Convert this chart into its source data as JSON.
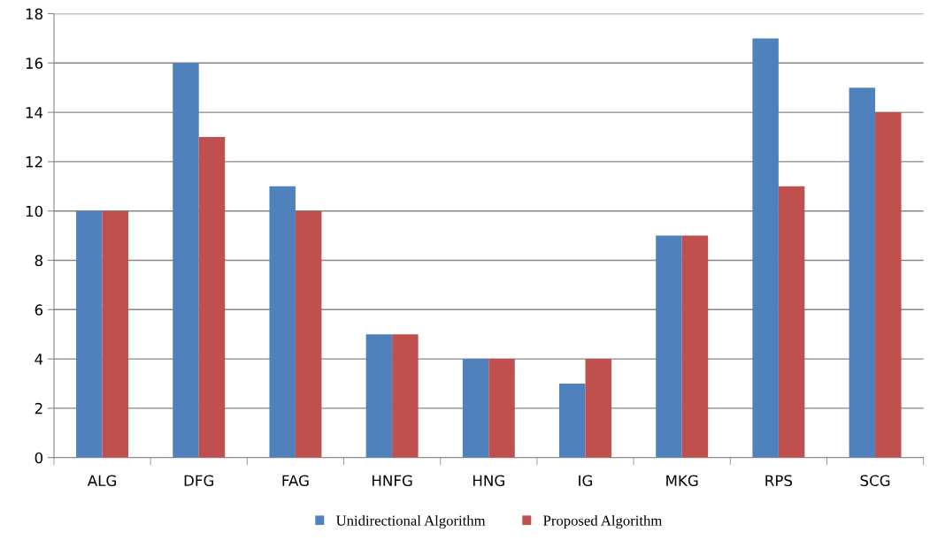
{
  "chart_data": {
    "type": "bar",
    "categories": [
      "ALG",
      "DFG",
      "FAG",
      "HNFG",
      "HNG",
      "IG",
      "MKG",
      "RPS",
      "SCG"
    ],
    "series": [
      {
        "name": "Unidirectional Algorithm",
        "color": "#4f81bd",
        "values": [
          10,
          16,
          11,
          5,
          4,
          3,
          9,
          17,
          15
        ]
      },
      {
        "name": "Proposed Algorithm",
        "color": "#c0504d",
        "values": [
          10,
          13,
          10,
          5,
          4,
          4,
          9,
          11,
          14
        ]
      }
    ],
    "ylim": [
      0,
      18
    ],
    "yticks": [
      0,
      2,
      4,
      6,
      8,
      10,
      12,
      14,
      16,
      18
    ],
    "grid": "y",
    "legend": "bottom"
  }
}
